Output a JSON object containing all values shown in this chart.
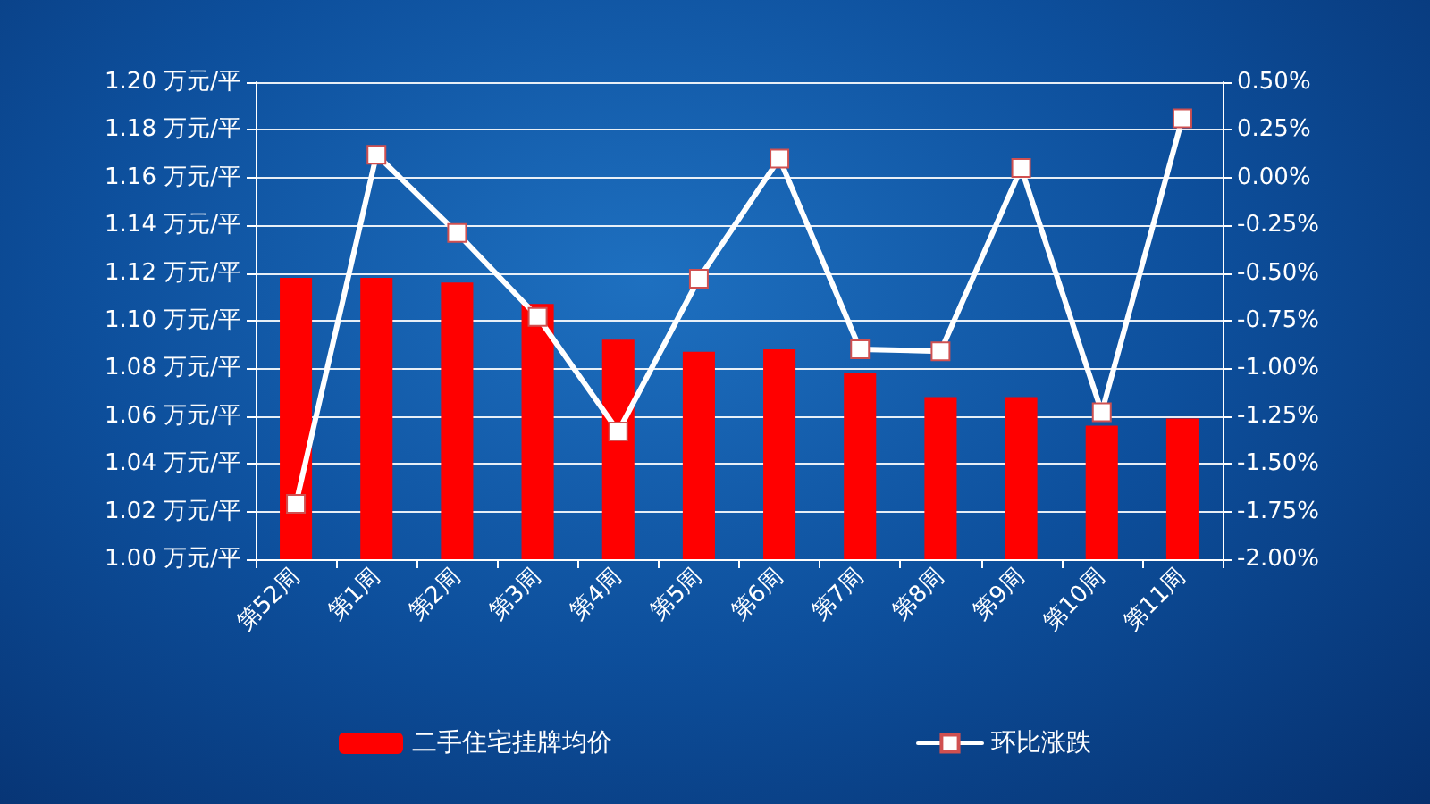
{
  "chart_data": {
    "type": "bar",
    "categories": [
      "第52周",
      "第1周",
      "第2周",
      "第3周",
      "第4周",
      "第5周",
      "第6周",
      "第7周",
      "第8周",
      "第9周",
      "第10周",
      "第11周"
    ],
    "series": [
      {
        "name": "二手住宅挂牌均价",
        "color": "#ff0000",
        "values": [
          1.118,
          1.118,
          1.116,
          1.107,
          1.092,
          1.087,
          1.088,
          1.078,
          1.068,
          1.068,
          1.056,
          1.059
        ]
      },
      {
        "name": "环比涨跌",
        "type": "line",
        "axis": "y2",
        "color": "#ffffff",
        "values": [
          -1.71,
          0.12,
          -0.29,
          -0.73,
          -1.33,
          -0.53,
          0.1,
          -0.9,
          -0.91,
          0.05,
          -1.23,
          0.31
        ]
      }
    ],
    "ylim": [
      1.0,
      1.2
    ],
    "yticks": [
      {
        "value": 1.0,
        "label": "1.00 万元/平"
      },
      {
        "value": 1.02,
        "label": "1.02 万元/平"
      },
      {
        "value": 1.04,
        "label": "1.04 万元/平"
      },
      {
        "value": 1.06,
        "label": "1.06 万元/平"
      },
      {
        "value": 1.08,
        "label": "1.08 万元/平"
      },
      {
        "value": 1.1,
        "label": "1.10 万元/平"
      },
      {
        "value": 1.12,
        "label": "1.12 万元/平"
      },
      {
        "value": 1.14,
        "label": "1.14 万元/平"
      },
      {
        "value": 1.16,
        "label": "1.16 万元/平"
      },
      {
        "value": 1.18,
        "label": "1.18 万元/平"
      },
      {
        "value": 1.2,
        "label": "1.20 万元/平"
      }
    ],
    "y2lim": [
      -2.0,
      0.5
    ],
    "y2ticks": [
      {
        "value": -2.0,
        "label": "-2.00%"
      },
      {
        "value": -1.75,
        "label": "-1.75%"
      },
      {
        "value": -1.5,
        "label": "-1.50%"
      },
      {
        "value": -1.25,
        "label": "-1.25%"
      },
      {
        "value": -1.0,
        "label": "-1.00%"
      },
      {
        "value": -0.75,
        "label": "-0.75%"
      },
      {
        "value": -0.5,
        "label": "-0.50%"
      },
      {
        "value": -0.25,
        "label": "-0.25%"
      },
      {
        "value": 0,
        "label": "0.00%"
      },
      {
        "value": 0.25,
        "label": "0.25%"
      },
      {
        "value": 0.5,
        "label": "0.50%"
      }
    ],
    "grid": "y",
    "legend": "bottom",
    "marker": "square",
    "line_style": "solid"
  }
}
